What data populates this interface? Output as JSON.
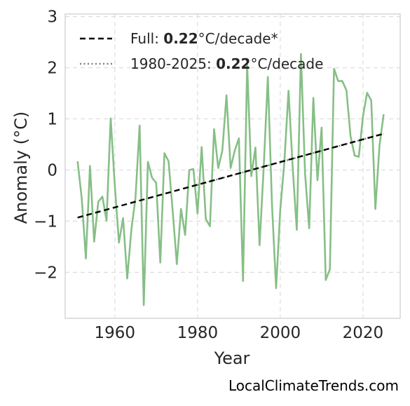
{
  "chart_data": {
    "type": "line",
    "xlabel": "Year",
    "ylabel": "Anomaly (°C)",
    "xlim": [
      1948,
      2029
    ],
    "ylim": [
      -2.9,
      3.05
    ],
    "x_ticks": [
      1960,
      1980,
      2000,
      2020
    ],
    "y_ticks": [
      3,
      2,
      1,
      0,
      -1,
      -2
    ],
    "y_tick_labels": [
      "3",
      "2",
      "1",
      "0",
      "−1",
      "−2"
    ],
    "grid": true,
    "legend_position": "top-left",
    "credit": "LocalClimateTrends.com",
    "colors": {
      "anomaly": "#86bf86",
      "full_trend": "#000000",
      "recent_trend": "#808080",
      "grid": "#dddddd",
      "frame": "#cccccc"
    },
    "series": [
      {
        "role": "anomaly",
        "x": [
          1951,
          1952,
          1953,
          1954,
          1955,
          1956,
          1957,
          1958,
          1959,
          1960,
          1961,
          1962,
          1963,
          1964,
          1965,
          1966,
          1967,
          1968,
          1969,
          1970,
          1971,
          1972,
          1973,
          1974,
          1975,
          1976,
          1977,
          1978,
          1979,
          1980,
          1981,
          1982,
          1983,
          1984,
          1985,
          1986,
          1987,
          1988,
          1989,
          1990,
          1991,
          1992,
          1993,
          1994,
          1995,
          1996,
          1997,
          1998,
          1999,
          2000,
          2001,
          2002,
          2003,
          2004,
          2005,
          2006,
          2007,
          2008,
          2009,
          2010,
          2011,
          2012,
          2013,
          2014,
          2015,
          2016,
          2017,
          2018,
          2019,
          2020,
          2021,
          2022,
          2023,
          2024,
          2025
        ],
        "y": [
          0.17,
          -0.55,
          -1.73,
          0.08,
          -1.4,
          -0.62,
          -0.52,
          -0.99,
          1.01,
          -0.3,
          -1.42,
          -0.94,
          -2.12,
          -1.17,
          -0.54,
          0.87,
          -2.64,
          0.16,
          -0.15,
          -0.25,
          -1.81,
          0.33,
          0.17,
          -0.81,
          -1.84,
          -0.76,
          -1.27,
          0.0,
          0.02,
          -0.85,
          0.45,
          -0.96,
          -1.1,
          0.8,
          0.04,
          0.38,
          1.46,
          0.04,
          0.38,
          0.62,
          -2.17,
          2.06,
          -0.12,
          0.44,
          -1.47,
          0.05,
          1.82,
          -0.67,
          -2.31,
          -0.78,
          0.16,
          1.55,
          0.06,
          -1.17,
          2.27,
          -0.07,
          -1.14,
          1.41,
          -0.2,
          0.83,
          -2.15,
          -1.94,
          1.98,
          1.74,
          1.74,
          1.56,
          0.66,
          0.28,
          0.26,
          1.05,
          1.51,
          1.36,
          -0.76,
          0.48,
          1.09
        ]
      },
      {
        "role": "full_trend",
        "x": [
          1951,
          2025
        ],
        "y": [
          -0.93,
          0.71
        ]
      },
      {
        "role": "recent_trend",
        "x": [
          1980,
          2025
        ],
        "y": [
          -0.29,
          0.71
        ]
      }
    ],
    "legend": [
      {
        "role": "full_trend",
        "prefix": "Full: ",
        "value": "0.22",
        "suffix": "°C/decade*"
      },
      {
        "role": "recent_trend",
        "prefix": "1980-2025: ",
        "value": "0.22",
        "suffix": "°C/decade"
      }
    ]
  }
}
